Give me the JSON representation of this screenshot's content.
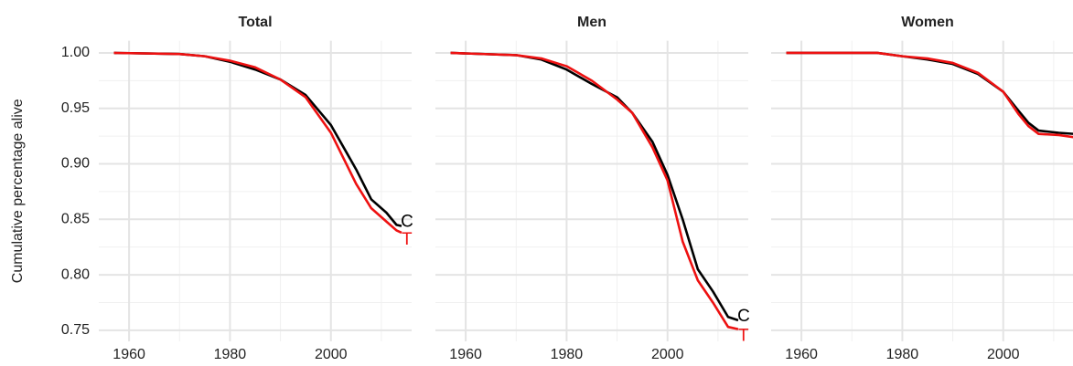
{
  "chart_data": [
    {
      "type": "line",
      "title": "Total",
      "ylabel": "Cumulative percentage alive",
      "x": [
        1957,
        1970,
        1975,
        1980,
        1985,
        1990,
        1995,
        2000,
        2005,
        2008,
        2011,
        2013,
        2014
      ],
      "series": [
        {
          "name": "C",
          "color": "#000000",
          "values": [
            1.0,
            0.999,
            0.997,
            0.992,
            0.985,
            0.976,
            0.962,
            0.935,
            0.895,
            0.868,
            0.856,
            0.845,
            0.844
          ]
        },
        {
          "name": "T",
          "color": "#ee1111",
          "values": [
            1.0,
            0.999,
            0.997,
            0.993,
            0.987,
            0.976,
            0.96,
            0.928,
            0.882,
            0.86,
            0.848,
            0.84,
            0.838
          ]
        }
      ],
      "xlim": [
        1954,
        2016
      ],
      "xticks": [
        1960,
        1980,
        2000
      ],
      "xminor": [
        1970,
        1990,
        2010
      ],
      "ylim": [
        0.74,
        1.011
      ],
      "yticks": [
        {
          "value": 0.75,
          "label": "0.75"
        },
        {
          "value": 0.8,
          "label": "0.80"
        },
        {
          "value": 0.85,
          "label": "0.85"
        },
        {
          "value": 0.9,
          "label": "0.90"
        },
        {
          "value": 0.95,
          "label": "0.95"
        },
        {
          "value": 1.0,
          "label": "1.00"
        }
      ],
      "yminor": [
        0.775,
        0.825,
        0.875,
        0.925,
        0.975
      ],
      "grid": true
    },
    {
      "type": "line",
      "title": "Men",
      "x": [
        1957,
        1970,
        1975,
        1980,
        1985,
        1990,
        1993,
        1997,
        2000,
        2003,
        2006,
        2009,
        2012,
        2014
      ],
      "series": [
        {
          "name": "C",
          "color": "#000000",
          "values": [
            1.0,
            0.998,
            0.994,
            0.985,
            0.972,
            0.96,
            0.946,
            0.92,
            0.89,
            0.85,
            0.805,
            0.785,
            0.762,
            0.759
          ]
        },
        {
          "name": "T",
          "color": "#ee1111",
          "values": [
            1.0,
            0.998,
            0.995,
            0.988,
            0.975,
            0.958,
            0.946,
            0.915,
            0.885,
            0.83,
            0.795,
            0.775,
            0.753,
            0.751
          ]
        }
      ],
      "xlim": [
        1954,
        2016
      ],
      "xticks": [
        1960,
        1980,
        2000
      ],
      "xminor": [
        1970,
        1990,
        2010
      ],
      "ylim": [
        0.74,
        1.011
      ],
      "yticks": [
        0.75,
        0.8,
        0.85,
        0.9,
        0.95,
        1.0
      ],
      "yminor": [
        0.775,
        0.825,
        0.875,
        0.925,
        0.975
      ],
      "grid": true
    },
    {
      "type": "line",
      "title": "Women",
      "x": [
        1957,
        1975,
        1980,
        1985,
        1990,
        1995,
        2000,
        2003,
        2005,
        2007,
        2011,
        2014
      ],
      "series": [
        {
          "name": "C",
          "color": "#000000",
          "values": [
            1.0,
            1.0,
            0.997,
            0.994,
            0.99,
            0.981,
            0.965,
            0.948,
            0.937,
            0.93,
            0.928,
            0.927
          ]
        },
        {
          "name": "T",
          "color": "#ee1111",
          "values": [
            1.0,
            1.0,
            0.997,
            0.995,
            0.991,
            0.982,
            0.965,
            0.945,
            0.934,
            0.927,
            0.926,
            0.924
          ]
        }
      ],
      "xlim": [
        1954,
        2016
      ],
      "xticks": [
        1960,
        1980,
        2000
      ],
      "xminor": [
        1970,
        1990,
        2010
      ],
      "ylim": [
        0.74,
        1.011
      ],
      "yticks": [
        0.75,
        0.8,
        0.85,
        0.9,
        0.95,
        1.0
      ],
      "yminor": [
        0.775,
        0.825,
        0.875,
        0.925,
        0.975
      ],
      "grid": true
    }
  ]
}
